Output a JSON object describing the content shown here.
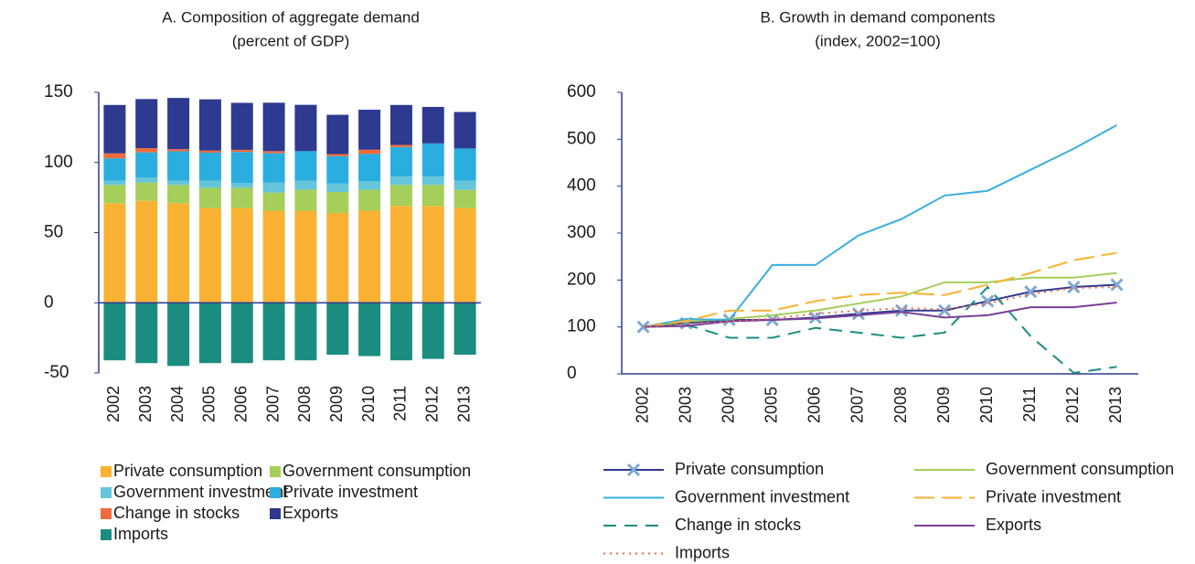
{
  "chart_data": [
    {
      "type": "bar",
      "stacked": true,
      "title": "A. Composition of aggregate demand",
      "subtitle": "(percent of GDP)",
      "categories": [
        "2002",
        "2003",
        "2004",
        "2005",
        "2006",
        "2007",
        "2008",
        "2009",
        "2010",
        "2011",
        "2012",
        "2013"
      ],
      "ylim": [
        -50,
        150
      ],
      "yticks": [
        -50,
        0,
        50,
        100,
        150
      ],
      "series": [
        {
          "name": "Private consumption",
          "color": "#f9b233",
          "values": [
            71,
            72.7,
            71,
            67.5,
            67.5,
            65.6,
            65.6,
            64,
            65.6,
            69,
            69,
            67.5
          ]
        },
        {
          "name": "Government consumption",
          "color": "#a6ce5a",
          "values": [
            13,
            13,
            13,
            14.5,
            14.5,
            13,
            15,
            15,
            15,
            15,
            15,
            13
          ]
        },
        {
          "name": "Government investment",
          "color": "#66c5d9",
          "values": [
            3,
            3.5,
            3,
            5,
            3.5,
            7,
            6.5,
            6,
            6,
            6,
            6,
            6.5
          ]
        },
        {
          "name": "Private investment",
          "color": "#2aaee0",
          "values": [
            16,
            18,
            21,
            20,
            22,
            21,
            21,
            19.5,
            19.5,
            21,
            23.6,
            23
          ]
        },
        {
          "name": "Change in stocks",
          "color": "#ef6b3b",
          "values": [
            3.5,
            3,
            1.5,
            1.5,
            1.5,
            1.5,
            0,
            1.5,
            3,
            1.5,
            0,
            0
          ]
        },
        {
          "name": "Exports",
          "color": "#2e3a90",
          "values": [
            34.5,
            35,
            36.5,
            36.5,
            33.5,
            34.5,
            33,
            28,
            28.5,
            28.5,
            26,
            26
          ]
        },
        {
          "name": "Imports",
          "color": "#1a8d80",
          "values": [
            -41,
            -43,
            -45,
            -43,
            -43,
            -41,
            -41,
            -37,
            -38,
            -41,
            -40,
            -37
          ]
        }
      ]
    },
    {
      "type": "line",
      "title": "B. Growth in demand components",
      "subtitle": "(index, 2002=100)",
      "categories": [
        "2002",
        "2003",
        "2004",
        "2005",
        "2006",
        "2007",
        "2008",
        "2009",
        "2010",
        "2011",
        "2012",
        "2013"
      ],
      "ylim": [
        0,
        600
      ],
      "yticks": [
        0,
        100,
        200,
        300,
        400,
        500,
        600
      ],
      "series": [
        {
          "name": "Private consumption",
          "color": "#2e3a90",
          "style": "solid",
          "marker": "x",
          "values": [
            100,
            108,
            115,
            115,
            120,
            128,
            135,
            135,
            155,
            175,
            185,
            190
          ]
        },
        {
          "name": "Government consumption",
          "color": "#a6ce5a",
          "style": "solid",
          "values": [
            100,
            112,
            117,
            125,
            135,
            150,
            165,
            195,
            195,
            205,
            205,
            215
          ]
        },
        {
          "name": "Government investment",
          "color": "#3aaee0",
          "style": "solid",
          "values": [
            100,
            117,
            115,
            232,
            232,
            295,
            330,
            380,
            390,
            435,
            480,
            530
          ]
        },
        {
          "name": "Private investment",
          "color": "#f9b233",
          "style": "longdash",
          "values": [
            100,
            113,
            135,
            135,
            155,
            168,
            173,
            168,
            190,
            215,
            242,
            258
          ]
        },
        {
          "name": "Change in stocks",
          "color": "#1a8d80",
          "style": "dashed",
          "values": [
            100,
            105,
            77,
            77,
            98,
            88,
            77,
            88,
            185,
            80,
            2,
            15
          ]
        },
        {
          "name": "Exports",
          "color": "#7b3f98",
          "style": "solid",
          "values": [
            100,
            102,
            112,
            115,
            118,
            125,
            132,
            120,
            125,
            142,
            142,
            152
          ]
        },
        {
          "name": "Imports",
          "color": "#ef6b3b",
          "style": "dotted",
          "values": [
            100,
            107,
            112,
            118,
            128,
            135,
            140,
            138,
            150,
            170,
            183,
            185
          ]
        }
      ]
    }
  ]
}
